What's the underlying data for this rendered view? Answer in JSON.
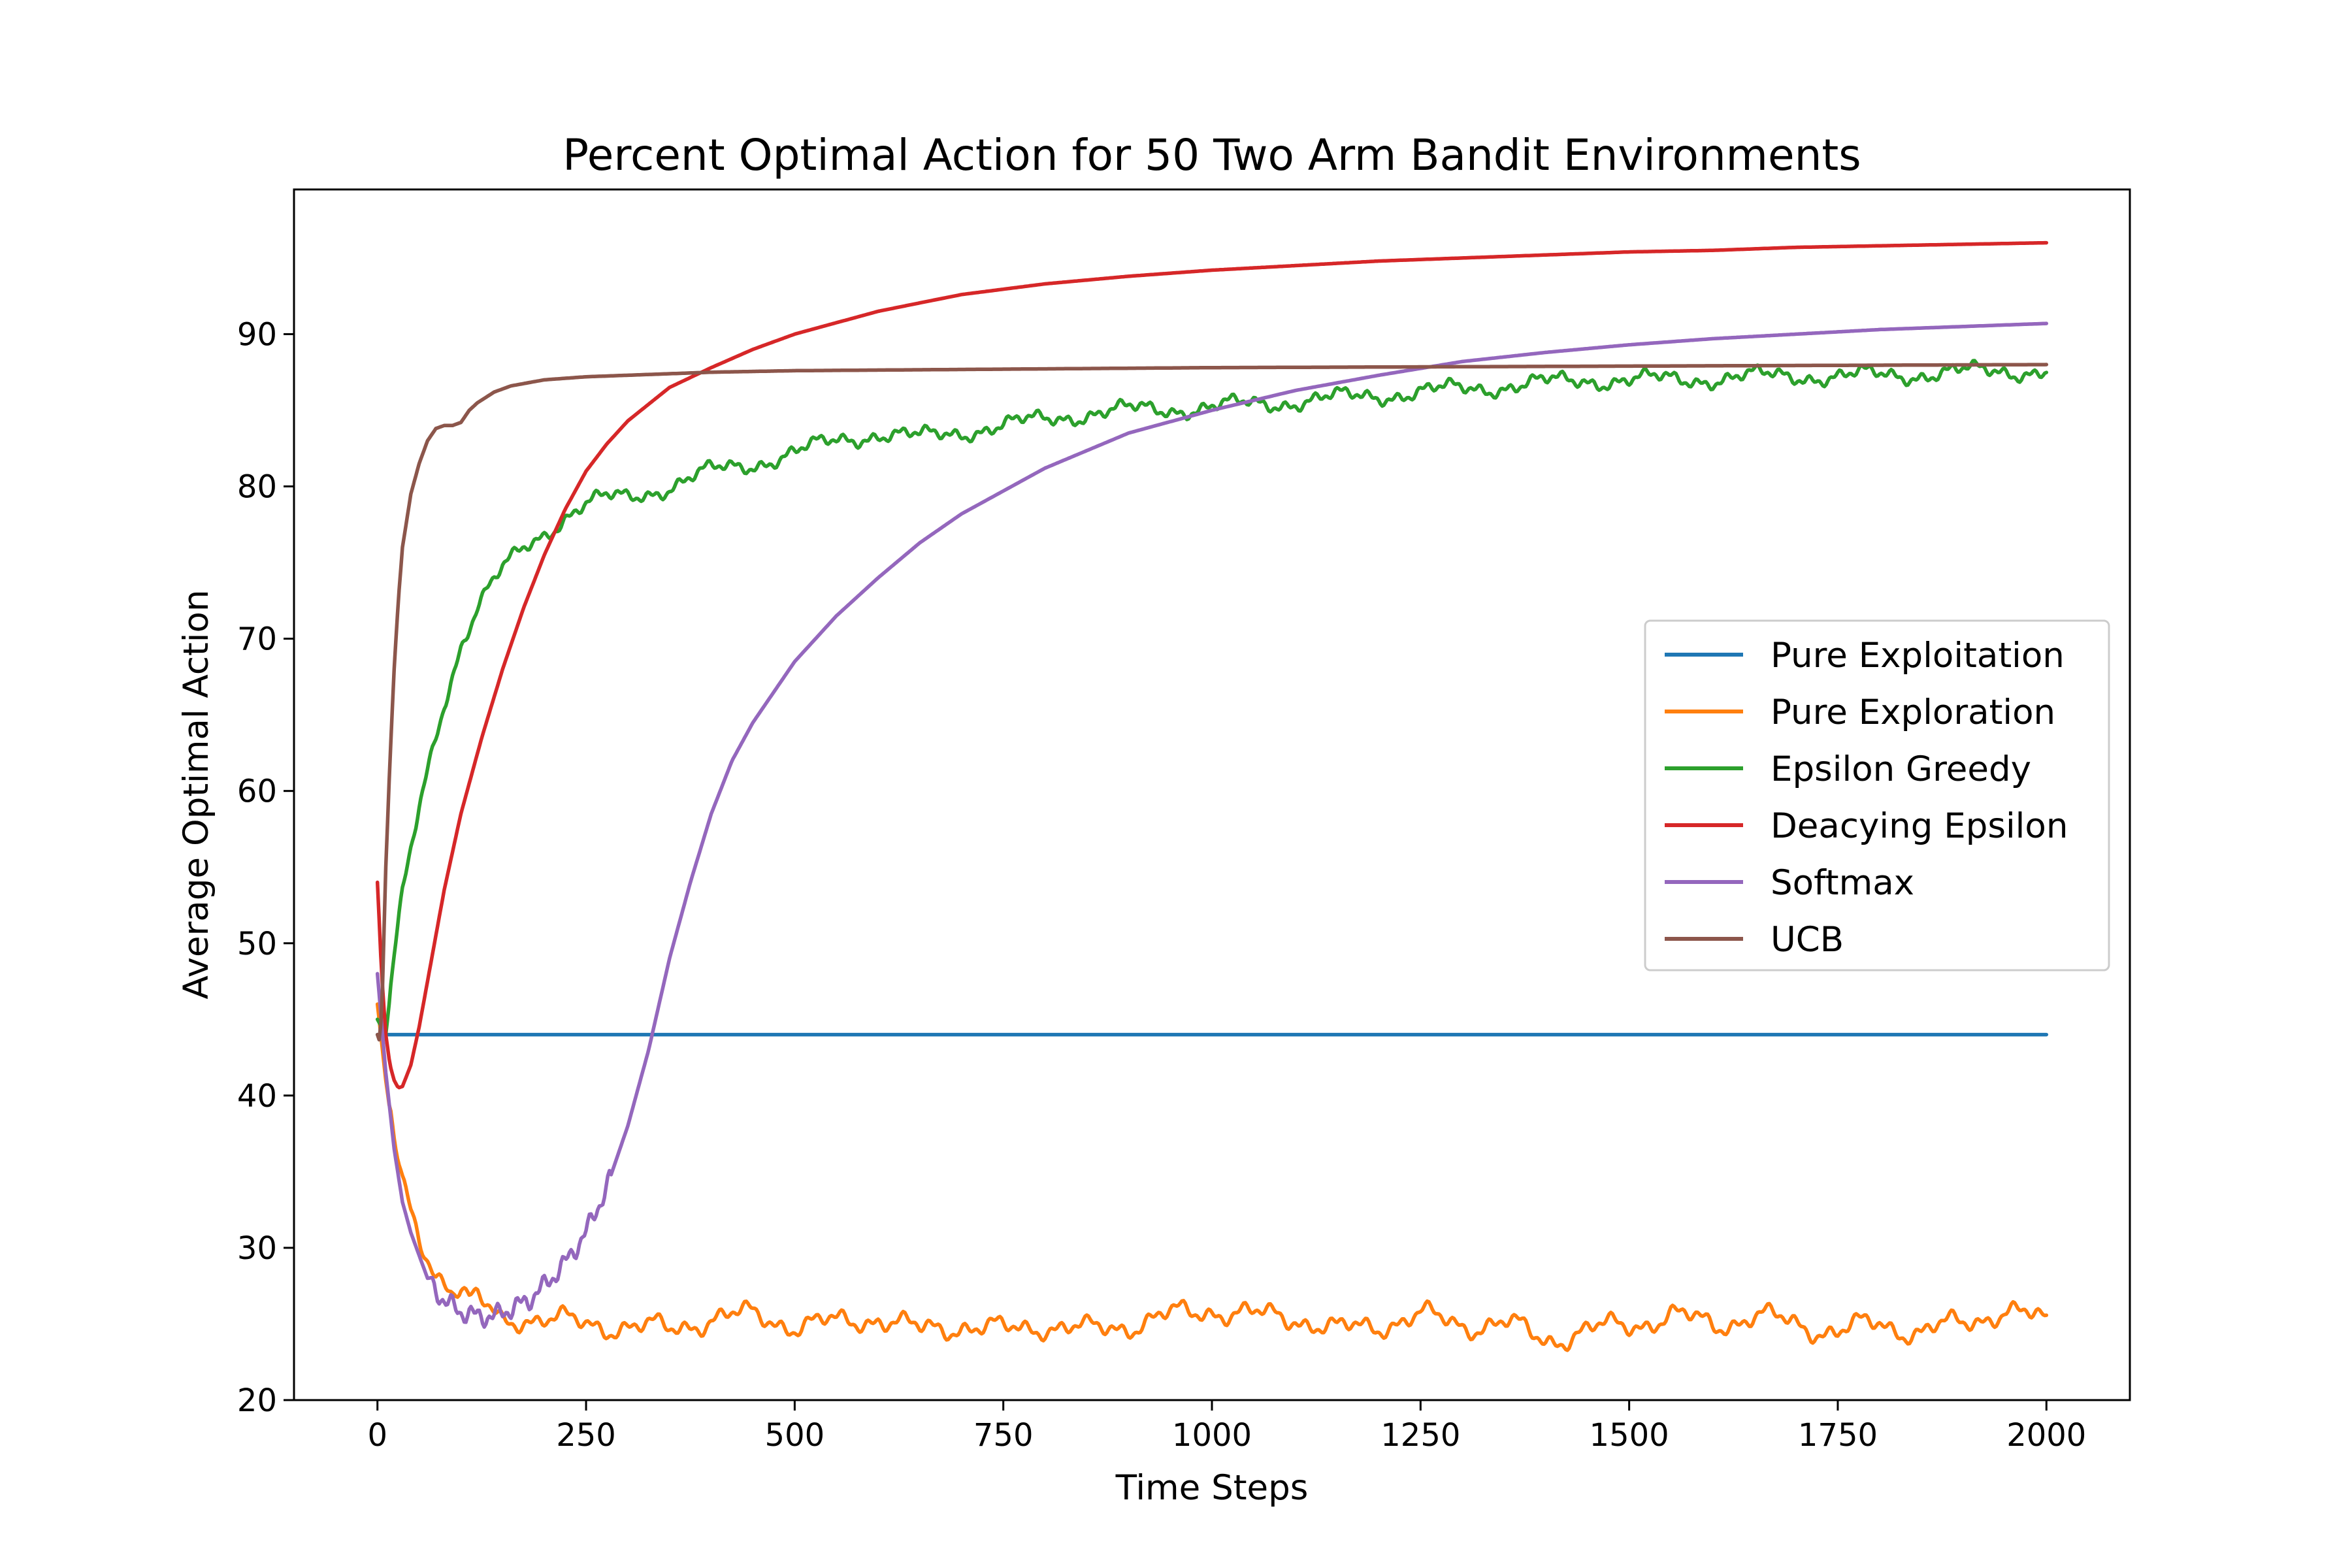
{
  "chart_data": {
    "type": "line",
    "title": "Percent Optimal Action for 50 Two Arm Bandit Environments",
    "xlabel": "Time Steps",
    "ylabel": "Average Optimal Action",
    "xlim": [
      -100,
      2100
    ],
    "ylim": [
      20,
      99.5
    ],
    "x_ticks": [
      0,
      250,
      500,
      750,
      1000,
      1250,
      1500,
      1750,
      2000
    ],
    "y_ticks": [
      20,
      30,
      40,
      50,
      60,
      70,
      80,
      90
    ],
    "grid": false,
    "legend_position": "center-right",
    "series": [
      {
        "name": "Pure Exploitation",
        "color": "#1f77b4",
        "x": [
          0,
          2000
        ],
        "y": [
          44,
          44
        ]
      },
      {
        "name": "Pure Exploration",
        "color": "#ff7f0e",
        "x": [
          0,
          10,
          20,
          30,
          40,
          50,
          60,
          70,
          80,
          90,
          100,
          110,
          120,
          130,
          140,
          150,
          175,
          200,
          250,
          300,
          350,
          400,
          450,
          500,
          550,
          600,
          650,
          700,
          750,
          800,
          850,
          900,
          950,
          1000,
          1050,
          1100,
          1150,
          1200,
          1250,
          1300,
          1350,
          1400,
          1450,
          1500,
          1550,
          1600,
          1650,
          1700,
          1750,
          1800,
          1850,
          1900,
          1950,
          2000
        ],
        "y": [
          46,
          41,
          37,
          34,
          32,
          30.5,
          29.5,
          28.5,
          28,
          27.5,
          27.5,
          26.5,
          26.5,
          26,
          25.5,
          25,
          25.5,
          25.5,
          24.8,
          25,
          24.5,
          25.5,
          25.5,
          25,
          25,
          25.5,
          24.5,
          25,
          24.5,
          25,
          24.5,
          25,
          25.5,
          26,
          25.5,
          25.5,
          24.5,
          25,
          25.5,
          25,
          25,
          24,
          24.5,
          25,
          25.5,
          25,
          25.5,
          25,
          24.5,
          25,
          24.5,
          25,
          26,
          25
        ]
      },
      {
        "name": "Epsilon Greedy",
        "color": "#2ca02c",
        "x": [
          0,
          10,
          20,
          30,
          40,
          50,
          60,
          80,
          100,
          120,
          150,
          175,
          200,
          225,
          250,
          275,
          300,
          350,
          400,
          450,
          500,
          550,
          600,
          650,
          700,
          750,
          800,
          850,
          900,
          950,
          1000,
          1050,
          1100,
          1150,
          1200,
          1250,
          1300,
          1350,
          1400,
          1450,
          1500,
          1550,
          1600,
          1650,
          1700,
          1750,
          1800,
          1850,
          1900,
          1950,
          2000
        ],
        "y": [
          45,
          44,
          49,
          53,
          56,
          59,
          61.5,
          66,
          69.5,
          72,
          74.5,
          76,
          77,
          78,
          78.8,
          79.2,
          79.3,
          80,
          81,
          81.5,
          82.2,
          83,
          83.5,
          83.2,
          83.6,
          84,
          84.4,
          84.8,
          85,
          85.1,
          85.2,
          85.4,
          85.6,
          85.8,
          86,
          86.2,
          86.4,
          86.6,
          86.8,
          87,
          87,
          87,
          87.1,
          87.2,
          87.3,
          87.2,
          87.3,
          87.4,
          87.5,
          87.6,
          87.6
        ]
      },
      {
        "name": "Deacying Epsilon",
        "color": "#d62728",
        "x": [
          0,
          5,
          10,
          15,
          20,
          25,
          30,
          40,
          50,
          60,
          70,
          80,
          100,
          125,
          150,
          175,
          200,
          225,
          250,
          275,
          300,
          350,
          400,
          450,
          500,
          600,
          700,
          800,
          900,
          1000,
          1100,
          1200,
          1300,
          1400,
          1500,
          1600,
          1700,
          1800,
          1900,
          2000
        ],
        "y": [
          54,
          48,
          44,
          42,
          41,
          40.5,
          40.6,
          42,
          44.5,
          47.5,
          50.5,
          53.5,
          58.5,
          63.5,
          68,
          72,
          75.5,
          78.5,
          81,
          82.8,
          84.3,
          86.5,
          87.8,
          89,
          90,
          91.5,
          92.6,
          93.3,
          93.8,
          94.2,
          94.5,
          94.8,
          95,
          95.2,
          95.4,
          95.5,
          95.7,
          95.8,
          95.9,
          96
        ]
      },
      {
        "name": "Softmax",
        "color": "#9467bd",
        "x": [
          0,
          10,
          20,
          30,
          40,
          50,
          60,
          80,
          100,
          120,
          140,
          160,
          180,
          200,
          225,
          250,
          275,
          300,
          325,
          350,
          375,
          400,
          425,
          450,
          500,
          550,
          600,
          650,
          700,
          800,
          900,
          1000,
          1100,
          1200,
          1300,
          1400,
          1500,
          1600,
          1700,
          1800,
          1900,
          2000
        ],
        "y": [
          48,
          41.5,
          36.5,
          33,
          31,
          29.5,
          28,
          26.5,
          25.8,
          25.5,
          25.5,
          26,
          26.5,
          27.5,
          29,
          31,
          34,
          38,
          43,
          49,
          54,
          58.5,
          62,
          64.5,
          68.5,
          71.5,
          74,
          76.3,
          78.2,
          81.2,
          83.5,
          85,
          86.3,
          87.3,
          88.2,
          88.8,
          89.3,
          89.7,
          90,
          90.3,
          90.5,
          90.7
        ]
      },
      {
        "name": "UCB",
        "color": "#8c564b",
        "x": [
          0,
          3,
          6,
          10,
          15,
          20,
          25,
          30,
          40,
          50,
          60,
          70,
          80,
          90,
          100,
          110,
          120,
          140,
          160,
          180,
          200,
          250,
          300,
          400,
          500,
          750,
          1000,
          1500,
          2000
        ],
        "y": [
          44,
          43.5,
          47,
          55,
          62,
          68,
          72.5,
          76,
          79.5,
          81.5,
          83,
          83.8,
          84,
          84,
          84.2,
          85,
          85.5,
          86.2,
          86.6,
          86.8,
          87,
          87.2,
          87.3,
          87.5,
          87.6,
          87.7,
          87.8,
          87.9,
          88
        ]
      }
    ]
  }
}
